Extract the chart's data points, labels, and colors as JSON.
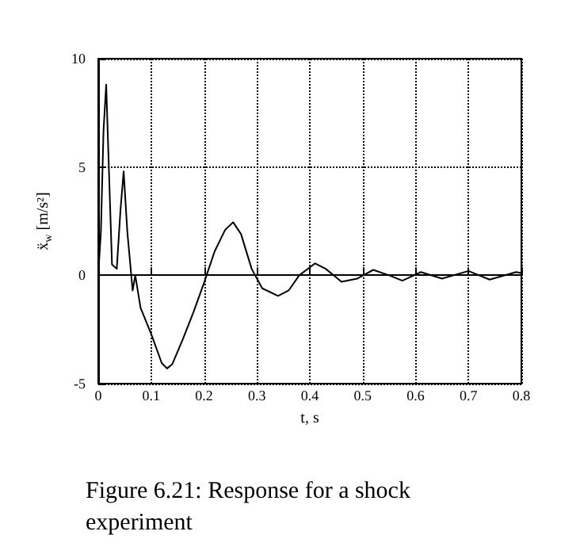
{
  "chart_data": {
    "type": "line",
    "xlabel": "t, s",
    "ylabel": "ẍ$_{w}$ [m/s²]",
    "annotations": [
      "Figure 6.21: Response for a shock experiment"
    ],
    "x": [
      0,
      0.005,
      0.01,
      0.015,
      0.02,
      0.026,
      0.035,
      0.042,
      0.048,
      0.055,
      0.065,
      0.07,
      0.08,
      0.1,
      0.12,
      0.13,
      0.14,
      0.16,
      0.18,
      0.2,
      0.22,
      0.24,
      0.255,
      0.27,
      0.29,
      0.31,
      0.34,
      0.36,
      0.38,
      0.41,
      0.43,
      0.46,
      0.49,
      0.52,
      0.55,
      0.575,
      0.61,
      0.65,
      0.7,
      0.74,
      0.79,
      0.8
    ],
    "series": [
      {
        "color": "#000000",
        "values": [
          0,
          2,
          6.7,
          8.8,
          5,
          0.5,
          0.3,
          3,
          4.8,
          2,
          -0.7,
          0,
          -1.5,
          -2.7,
          -4.05,
          -4.3,
          -4.1,
          -2.95,
          -1.7,
          -0.35,
          1.1,
          2.1,
          2.45,
          1.9,
          0.3,
          -0.6,
          -0.95,
          -0.7,
          0,
          0.55,
          0.3,
          -0.3,
          -0.15,
          0.25,
          0,
          -0.25,
          0.15,
          -0.15,
          0.2,
          -0.2,
          0.15,
          0.1
        ]
      }
    ],
    "xlim": [
      0,
      0.8
    ],
    "xticks": [
      0,
      0.1,
      0.2,
      0.3,
      0.4,
      0.5,
      0.6,
      0.7,
      0.8
    ],
    "ylim": [
      -5,
      10
    ],
    "yticks": [
      -5,
      0,
      5,
      10
    ],
    "grid": true,
    "marker": "none",
    "line_style": "solid"
  }
}
